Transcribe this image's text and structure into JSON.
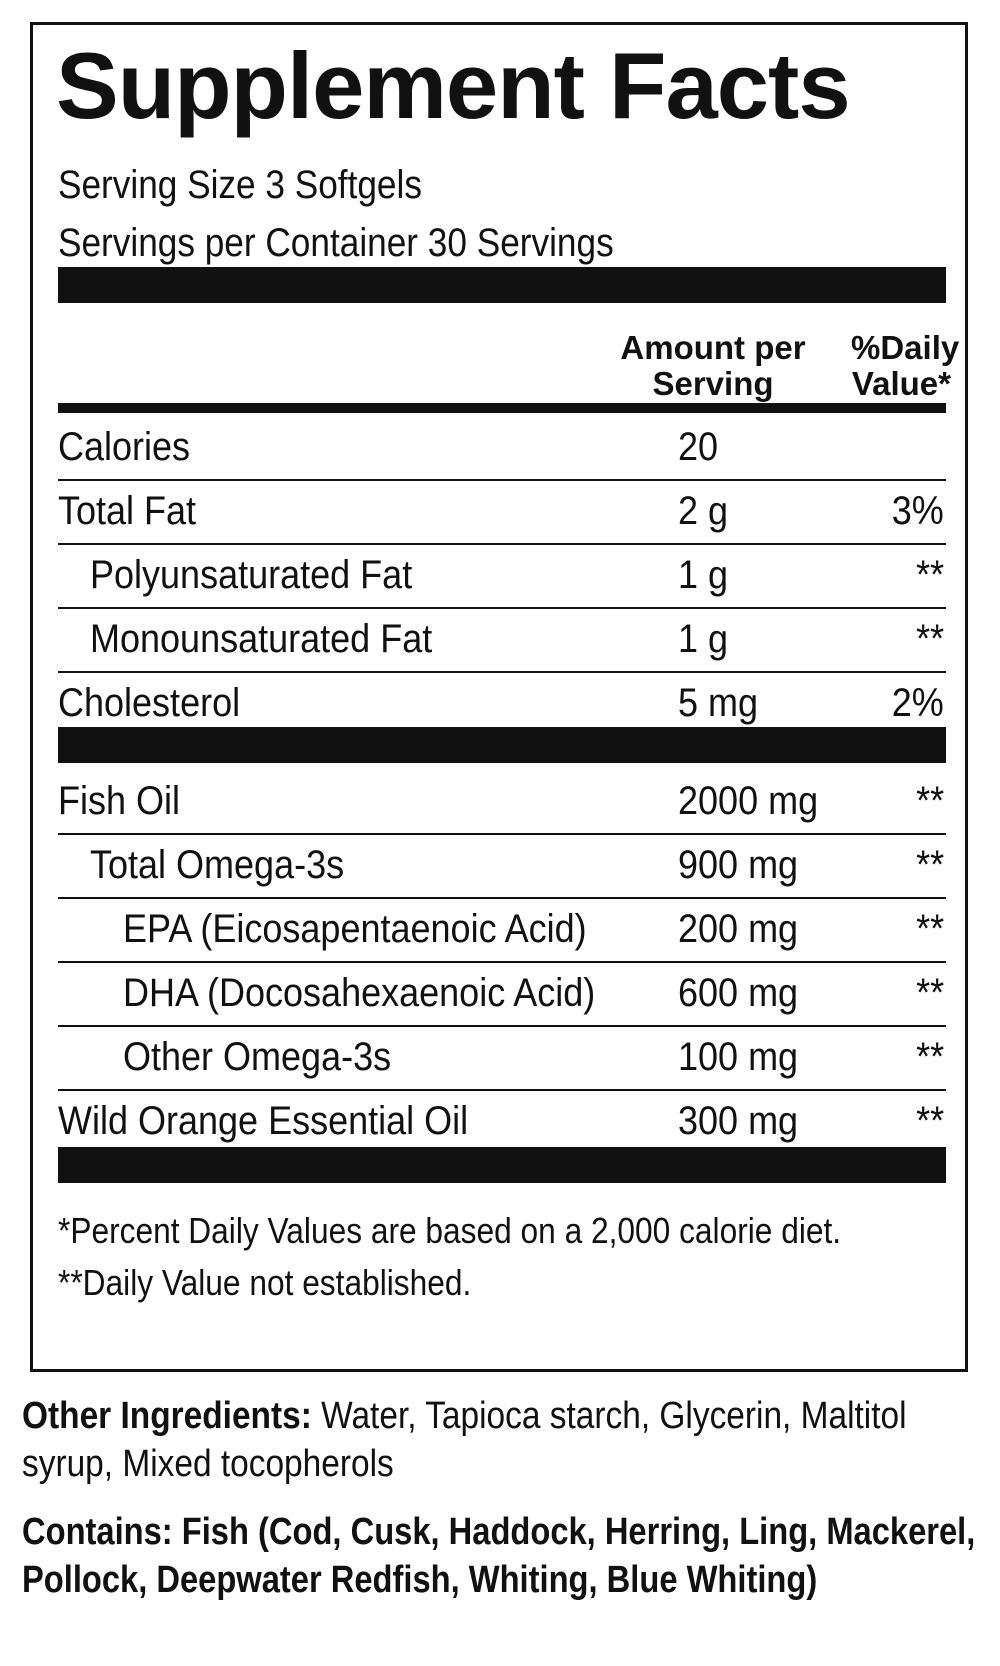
{
  "panel": {
    "title": "Supplement Facts",
    "serving_size": "Serving Size 3 Softgels",
    "servings_per_container": "Servings per Container 30 Servings",
    "header": {
      "amount": "Amount per Serving",
      "daily_value": "%Daily Value*"
    },
    "rows_group1": [
      {
        "name": "Calories",
        "amount": "20",
        "dv": ""
      },
      {
        "name": "Total Fat",
        "amount": "2 g",
        "dv": "3%"
      },
      {
        "name": "Polyunsaturated Fat",
        "amount": "1 g",
        "dv": "**"
      },
      {
        "name": "Monounsaturated Fat",
        "amount": "1 g",
        "dv": "**"
      },
      {
        "name": "Cholesterol",
        "amount": "5 mg",
        "dv": "2%"
      }
    ],
    "rows_group2": [
      {
        "name": "Fish Oil",
        "amount": "2000 mg",
        "dv": "**"
      },
      {
        "name": "Total Omega-3s",
        "amount": "900 mg",
        "dv": "**"
      },
      {
        "name": "EPA (Eicosapentaenoic Acid)",
        "amount": "200 mg",
        "dv": "**"
      },
      {
        "name": "DHA (Docosahexaenoic Acid)",
        "amount": "600 mg",
        "dv": "**"
      },
      {
        "name": "Other Omega-3s",
        "amount": "100 mg",
        "dv": "**"
      },
      {
        "name": "Wild Orange Essential Oil",
        "amount": "300 mg",
        "dv": "**"
      }
    ],
    "footnote1": "*Percent Daily Values are based on a 2,000 calorie diet.",
    "footnote2": "**Daily Value not established."
  },
  "other_ingredients": {
    "label": "Other Ingredients:",
    "text": " Water, Tapioca starch,  Glycerin, Maltitol syrup, Mixed tocopherols"
  },
  "contains": {
    "label": "Contains:",
    "text": " Fish (Cod, Cusk, Haddock, Herring, Ling, Mackerel, Pollock, Deepwater Redfish, Whiting, Blue Whiting)"
  }
}
